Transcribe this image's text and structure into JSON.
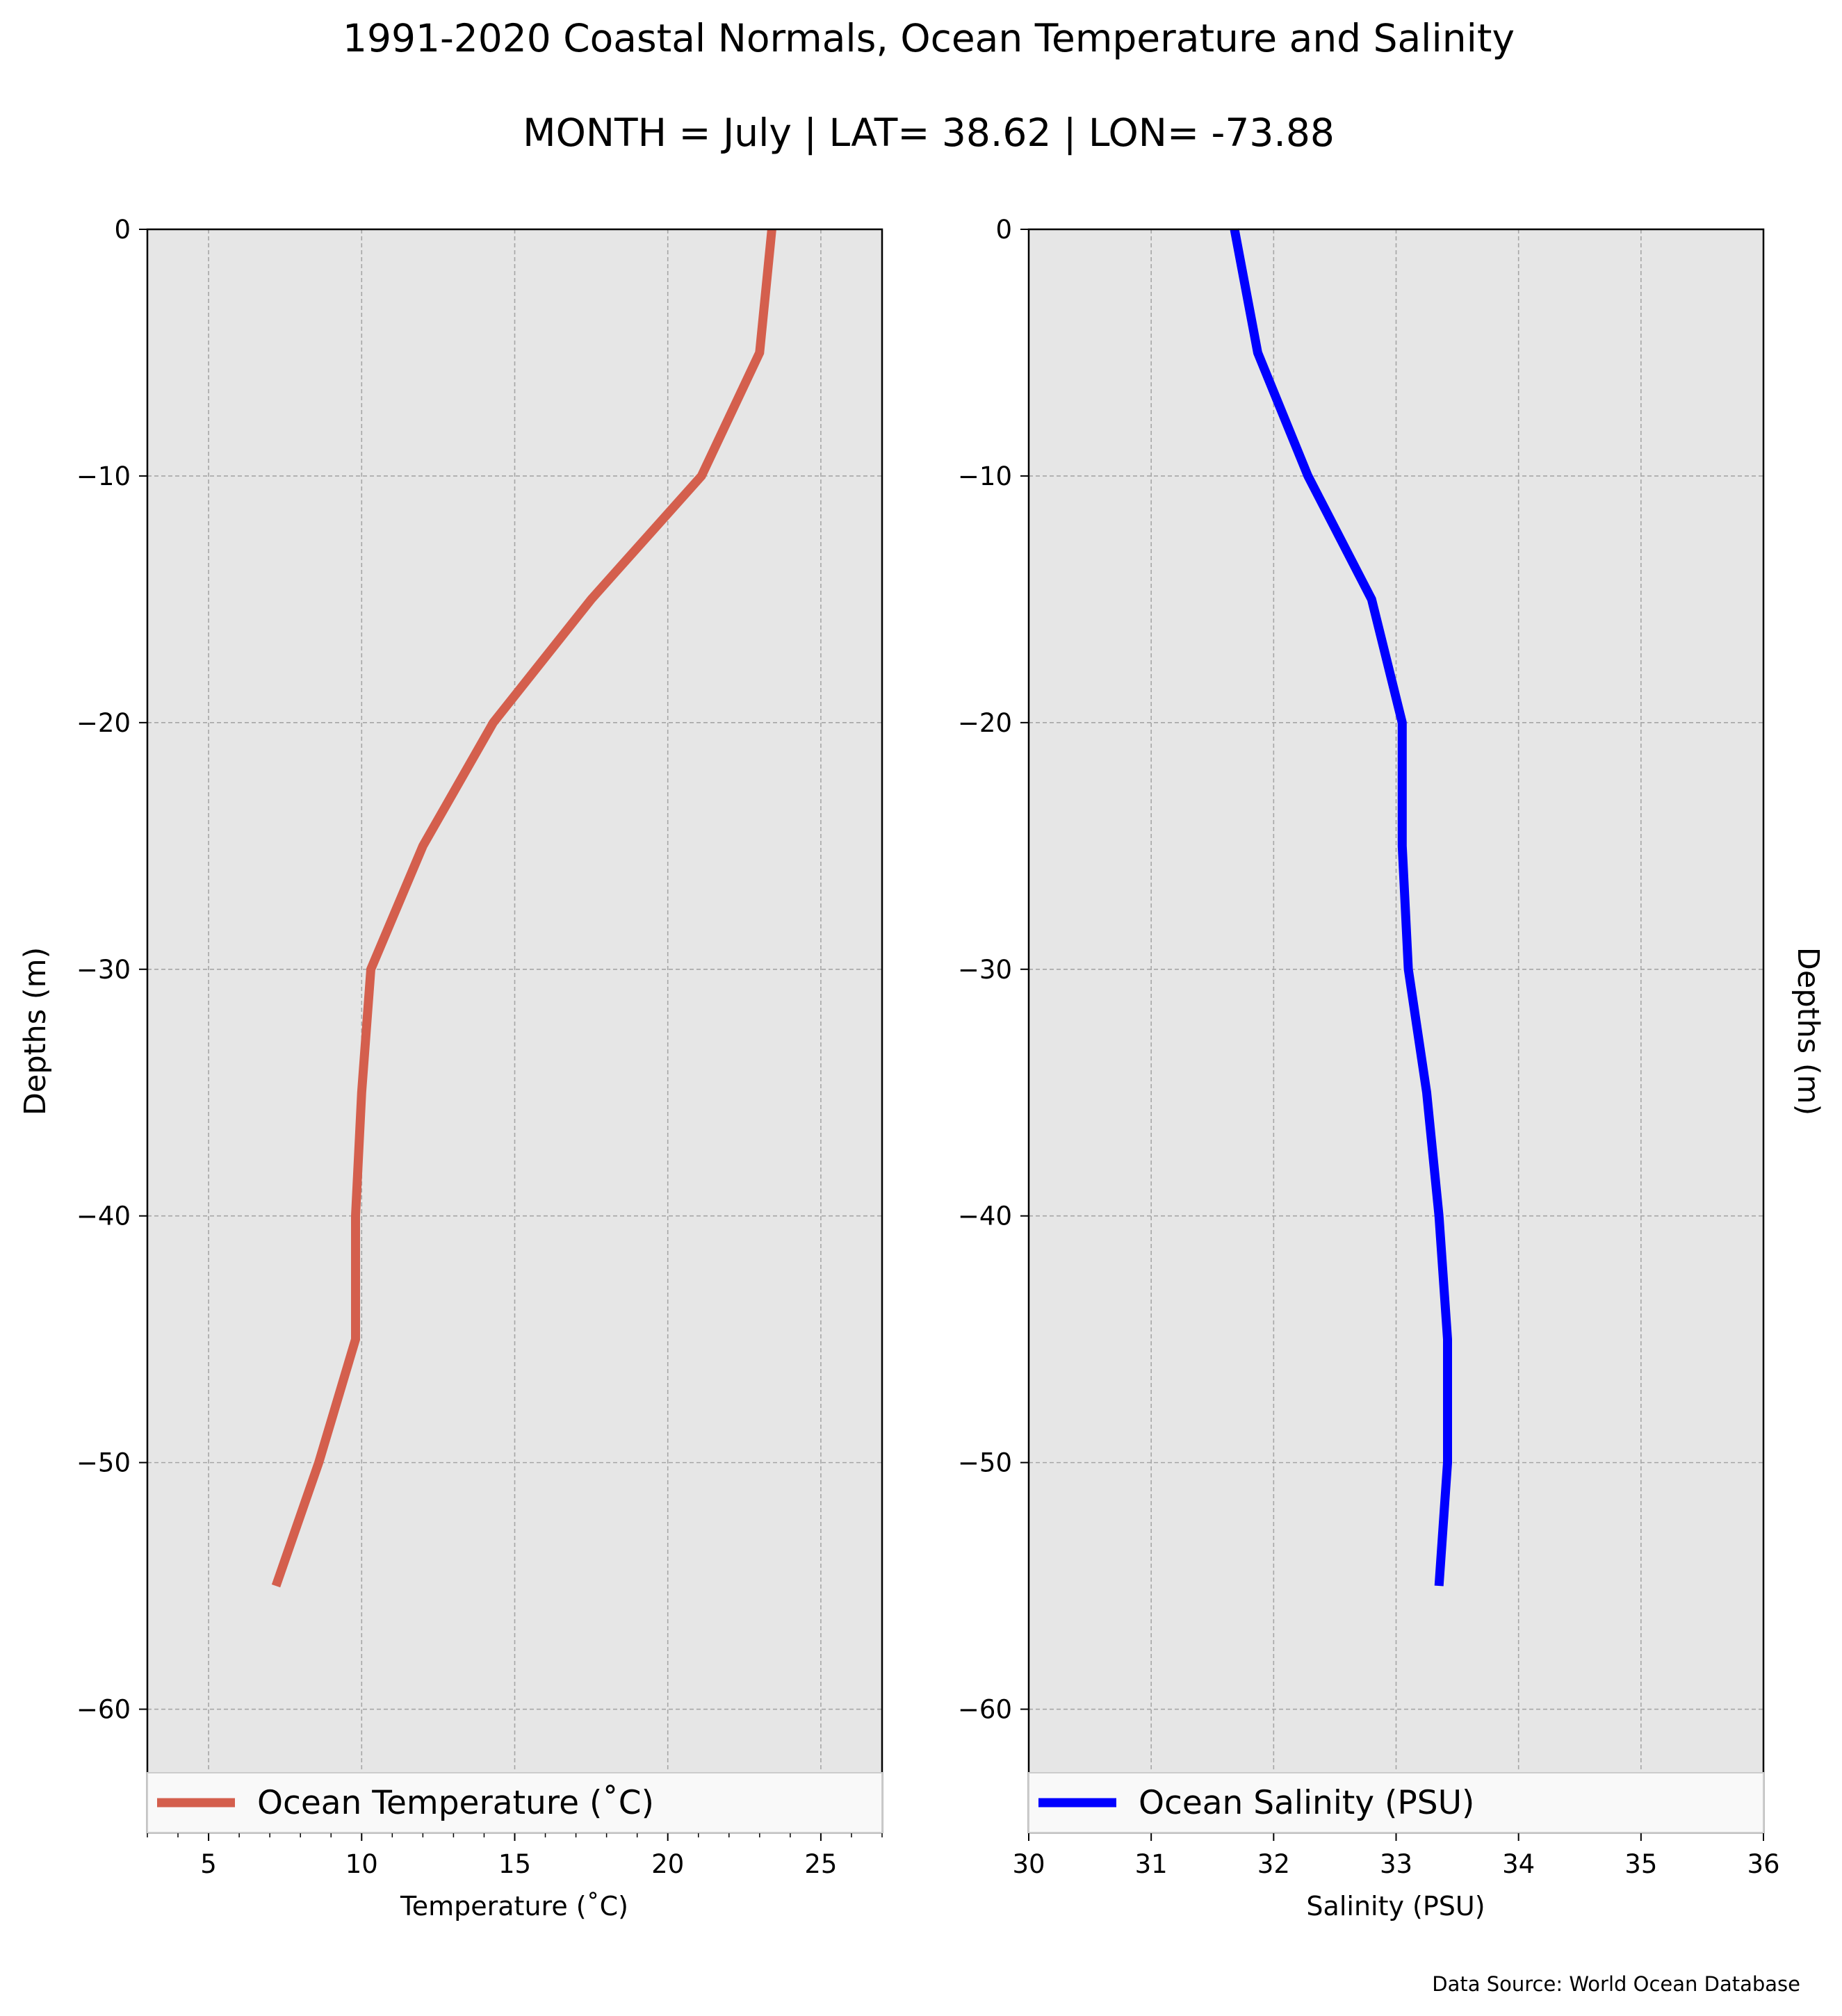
{
  "title": "1991-2020 Coastal Normals, Ocean Temperature and Salinity",
  "subtitle": "MONTH = July | LAT= 38.62 | LON= -73.88",
  "source": "Data Source: World Ocean Database",
  "chart_data": [
    {
      "type": "line",
      "xlabel": "Temperature ($^\\circ$C)",
      "xlabel_display": "Temperature (˚C)",
      "ylabel": "Depths (m)",
      "xlim": [
        3,
        27
      ],
      "ylim": [
        -65,
        0
      ],
      "xticks": [
        "5",
        "10",
        "15",
        "20",
        "25"
      ],
      "xtick_values": [
        5,
        10,
        15,
        20,
        25
      ],
      "yticks": [
        "0",
        "−10",
        "−20",
        "−30",
        "−40",
        "−50",
        "−60"
      ],
      "ytick_values": [
        0,
        -10,
        -20,
        -30,
        -40,
        -50,
        -60
      ],
      "grid": true,
      "legend_position": "bottom",
      "series": [
        {
          "name": "Ocean Temperature (˚C)",
          "color": "#d45f4d",
          "x": [
            23.4,
            23.0,
            21.1,
            17.5,
            14.3,
            12.0,
            10.3,
            10.0,
            9.8,
            9.8,
            8.6,
            7.2
          ],
          "y": [
            0,
            -5,
            -10,
            -15,
            -20,
            -25,
            -30,
            -35,
            -40,
            -45,
            -50,
            -55
          ]
        }
      ]
    },
    {
      "type": "line",
      "xlabel": "Salinity (PSU)",
      "ylabel": "Depths (m)",
      "xlim": [
        30,
        36
      ],
      "ylim": [
        -65,
        0
      ],
      "xticks": [
        "30",
        "31",
        "32",
        "33",
        "34",
        "35",
        "36"
      ],
      "xtick_values": [
        30,
        31,
        32,
        33,
        34,
        35,
        36
      ],
      "yticks": [
        "0",
        "−10",
        "−20",
        "−30",
        "−40",
        "−50",
        "−60"
      ],
      "ytick_values": [
        0,
        -10,
        -20,
        -30,
        -40,
        -50,
        -60
      ],
      "grid": true,
      "legend_position": "bottom",
      "series": [
        {
          "name": "Ocean Salinity (PSU)",
          "color": "#0000ff",
          "x": [
            31.68,
            31.87,
            32.28,
            32.8,
            33.05,
            33.05,
            33.1,
            33.25,
            33.35,
            33.42,
            33.42,
            33.35
          ],
          "y": [
            0,
            -5,
            -10,
            -15,
            -20,
            -25,
            -30,
            -35,
            -40,
            -45,
            -50,
            -55
          ]
        }
      ]
    }
  ]
}
